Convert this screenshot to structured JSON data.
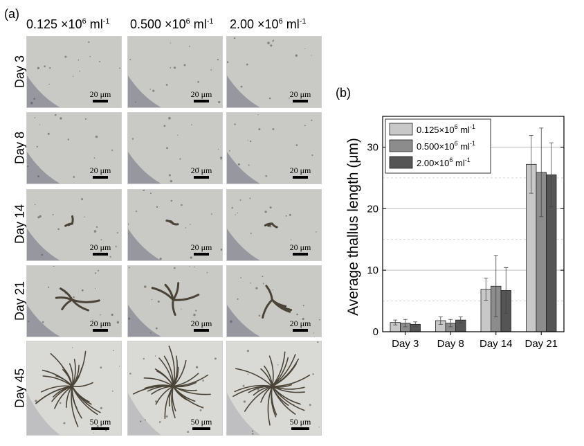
{
  "panel_a": {
    "label": "(a)",
    "columns": [
      {
        "value": "0.125 ×10",
        "exp": "6",
        "unit": " ml",
        "unit_exp": "-1"
      },
      {
        "value": "0.500 ×10",
        "exp": "6",
        "unit": " ml",
        "unit_exp": "-1"
      },
      {
        "value": "2.00 ×10",
        "exp": "6",
        "unit": " ml",
        "unit_exp": "-1"
      }
    ],
    "rows": [
      "Day 3",
      "Day 8",
      "Day 14",
      "Day 21",
      "Day 45"
    ],
    "scale_bars": [
      "20 μm",
      "20 μm",
      "20 μm",
      "20 μm",
      "50 μm"
    ]
  },
  "panel_b": {
    "label": "(b)"
  },
  "chart_data": {
    "type": "bar",
    "categories": [
      "Day 3",
      "Day 8",
      "Day 14",
      "Day 21"
    ],
    "ylabel": "Average thallus length (μm)",
    "ylim": [
      0,
      35
    ],
    "yticks": [
      0,
      10,
      20,
      30
    ],
    "grid": true,
    "legend_position": "top-left",
    "series": [
      {
        "name": "0.125×10⁶ ml⁻¹",
        "legend": {
          "pre": "0.125×10",
          "exp": "6",
          "unit": " ml",
          "unit_exp": "-1"
        },
        "values": [
          1.5,
          1.8,
          6.9,
          27.2
        ],
        "errors": [
          0.4,
          0.6,
          1.8,
          4.7
        ],
        "color": "#c8c8c8"
      },
      {
        "name": "0.500×10⁶ ml⁻¹",
        "legend": {
          "pre": "0.500×10",
          "exp": "6",
          "unit": " ml",
          "unit_exp": "-1"
        },
        "values": [
          1.4,
          1.4,
          7.4,
          25.9
        ],
        "errors": [
          0.6,
          0.6,
          5.0,
          7.2
        ],
        "color": "#8c8c8c"
      },
      {
        "name": "2.00×10⁶ ml⁻¹",
        "legend": {
          "pre": "2.00×10",
          "exp": "6",
          "unit": " ml",
          "unit_exp": "-1"
        },
        "values": [
          1.2,
          1.9,
          6.7,
          25.5
        ],
        "errors": [
          0.4,
          0.5,
          3.7,
          5.2
        ],
        "color": "#555555"
      }
    ]
  }
}
